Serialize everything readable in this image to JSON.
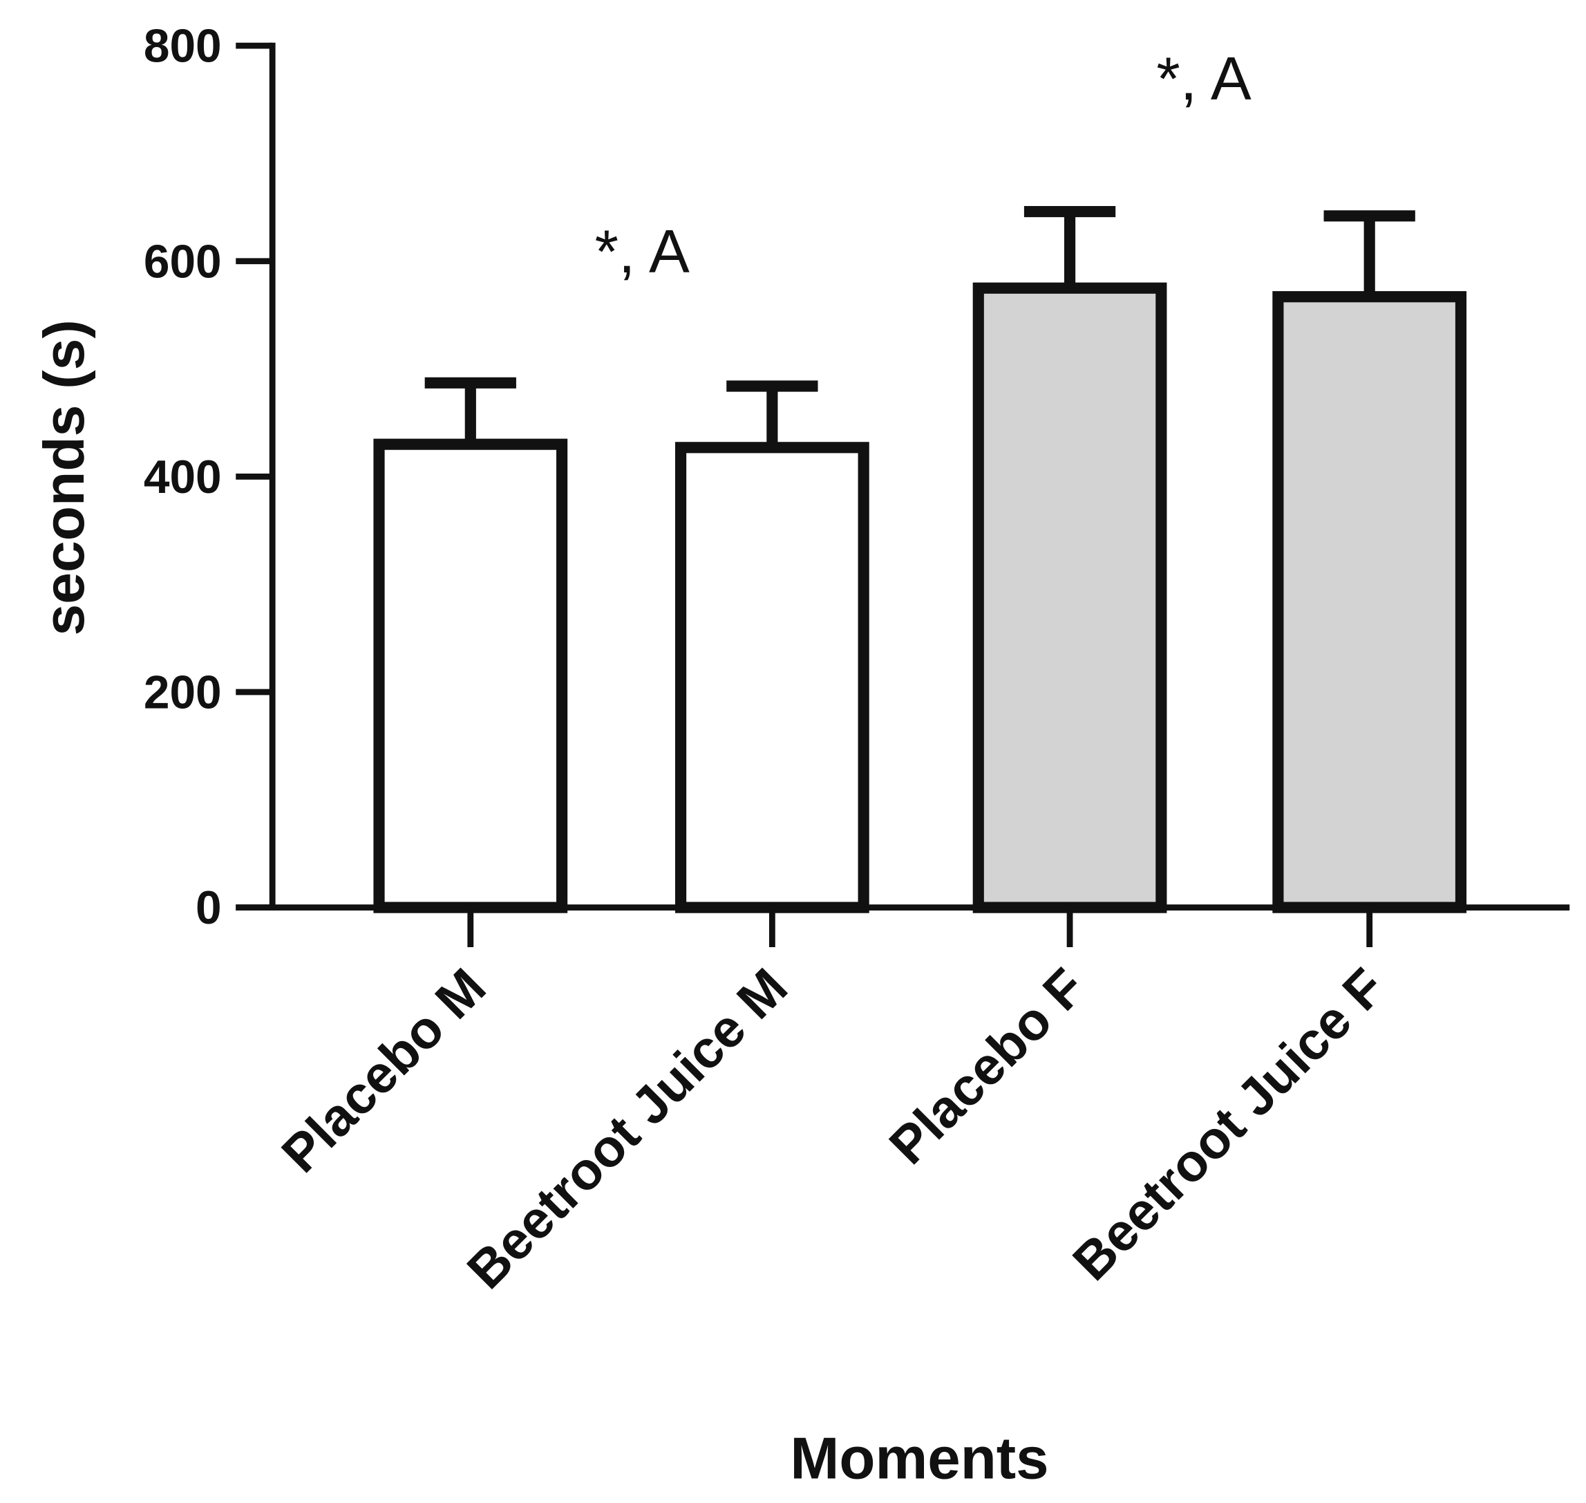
{
  "chart_data": {
    "type": "bar",
    "xlabel": "Moments",
    "ylabel": "seconds (s)",
    "categories": [
      "Placebo M",
      "Beetroot Juice M",
      "Placebo F",
      "Beetroot Juice F"
    ],
    "values": [
      430,
      427,
      575,
      567
    ],
    "errors": [
      57,
      57,
      71,
      75
    ],
    "colors": [
      "#ffffff",
      "#ffffff",
      "#d3d3d3",
      "#d3d3d3"
    ],
    "ylim": [
      0,
      800
    ],
    "yticks": [
      0,
      200,
      400,
      600,
      800
    ],
    "annotations": [
      "*, A",
      "*, A"
    ]
  }
}
